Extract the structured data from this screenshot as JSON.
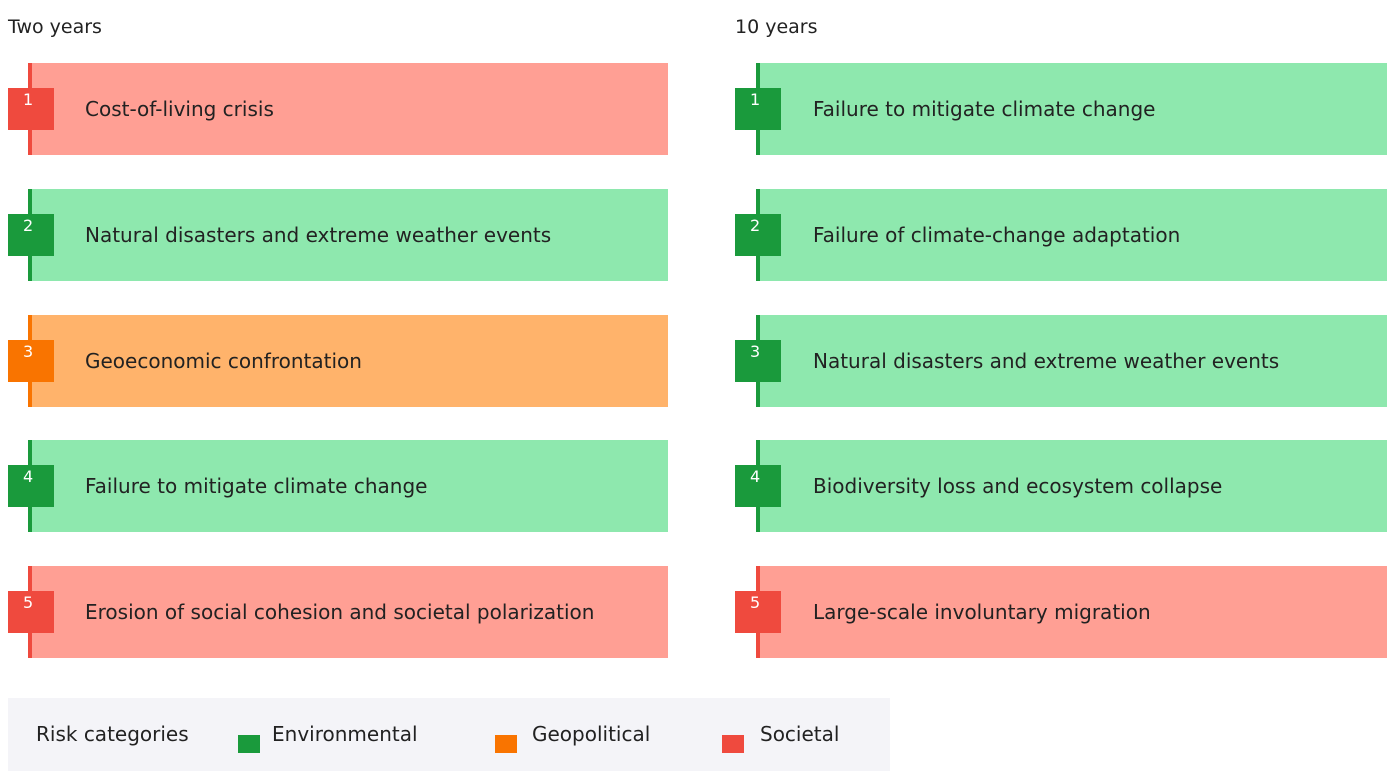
{
  "columns": [
    {
      "title": "Two years",
      "items": [
        {
          "rank": 1,
          "label": "Cost-of-living crisis",
          "color": "#ef4a3e",
          "fill": "#ff9f94"
        },
        {
          "rank": 2,
          "label": "Natural disasters and extreme weather events",
          "color": "#1a9a3c",
          "fill": "#8ee8ae"
        },
        {
          "rank": 3,
          "label": "Geoeconomic confrontation",
          "color": "#f97400",
          "fill": "#ffb36b"
        },
        {
          "rank": 4,
          "label": "Failure to mitigate climate change",
          "color": "#1a9a3c",
          "fill": "#8ee8ae"
        },
        {
          "rank": 5,
          "label": "Erosion of social cohesion and societal polarization",
          "color": "#ef4a3e",
          "fill": "#ff9f94"
        }
      ]
    },
    {
      "title": "10 years",
      "items": [
        {
          "rank": 1,
          "label": "Failure to mitigate climate change",
          "color": "#1a9a3c",
          "fill": "#8ee8ae"
        },
        {
          "rank": 2,
          "label": "Failure of climate-change adaptation",
          "color": "#1a9a3c",
          "fill": "#8ee8ae"
        },
        {
          "rank": 3,
          "label": "Natural disasters and extreme weather events",
          "color": "#1a9a3c",
          "fill": "#8ee8ae"
        },
        {
          "rank": 4,
          "label": "Biodiversity loss and ecosystem collapse",
          "color": "#1a9a3c",
          "fill": "#8ee8ae"
        },
        {
          "rank": 5,
          "label": "Large-scale involuntary migration",
          "color": "#ef4a3e",
          "fill": "#ff9f94"
        }
      ]
    }
  ],
  "legend": {
    "title": "Risk categories",
    "items": [
      {
        "name": "Environmental",
        "color": "#1a9a3c"
      },
      {
        "name": "Geopolitical",
        "color": "#f97400"
      },
      {
        "name": "Societal",
        "color": "#ef4a3e"
      }
    ]
  }
}
